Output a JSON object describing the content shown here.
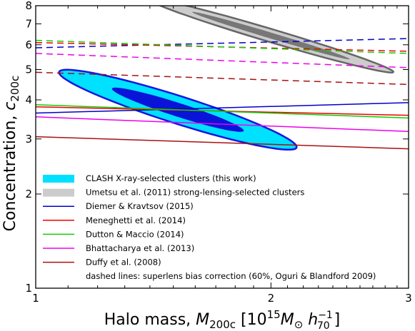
{
  "chart_data": {
    "type": "line",
    "x_scale": "log",
    "y_scale": "log",
    "xlim": [
      1,
      3
    ],
    "ylim": [
      1,
      8
    ],
    "x_ticks": [
      {
        "value": 1,
        "label": "1"
      },
      {
        "value": 2,
        "label": "2"
      },
      {
        "value": 3,
        "label": "3"
      }
    ],
    "y_ticks": [
      {
        "value": 1,
        "label": "1"
      },
      {
        "value": 2,
        "label": "2"
      },
      {
        "value": 3,
        "label": "3"
      },
      {
        "value": 4,
        "label": "4"
      },
      {
        "value": 5,
        "label": "5"
      },
      {
        "value": 6,
        "label": "6"
      },
      {
        "value": 7,
        "label": "7"
      },
      {
        "value": 8,
        "label": "8"
      }
    ],
    "xlabel": {
      "prefix": "Halo mass, ",
      "sym": "M",
      "sub": "200c",
      "units": " [10",
      "exp": "15",
      "msun": "M",
      "msun_sub": "⊙",
      "h": " h",
      "h_sub": "70",
      "h_exp": "−1",
      "close": "]"
    },
    "ylabel": {
      "prefix": "Concentration, ",
      "sym": "c",
      "sub": "200c"
    },
    "ellipses": [
      {
        "name": "CLASH X-ray-selected clusters (this work)",
        "center": [
          1.52,
          3.72
        ],
        "inner": {
          "semi_major_logx": 0.25,
          "semi_minor": 0.041,
          "fill": "#0a14d8"
        },
        "outer": {
          "semi_major_logx": 0.45,
          "semi_minor": 0.083,
          "fill": "#00e0ff",
          "stroke": "#1515e0"
        },
        "slope": -0.83
      },
      {
        "name": "Umetsu et al. (2011) strong-lensing-selected clusters",
        "center": [
          2.0,
          6.42
        ],
        "inner": {
          "semi_major_logx": 0.29,
          "semi_minor": 0.018,
          "fill": "#777777"
        },
        "outer": {
          "semi_major_logx": 0.45,
          "semi_minor": 0.04,
          "fill": "#cccccc",
          "stroke": "#666666"
        },
        "slope": -0.75
      }
    ],
    "series": [
      {
        "name": "Diemer & Kravtsov (2015)",
        "color": "#0000cc",
        "x": [
          1,
          3
        ],
        "solid": [
          3.63,
          3.92
        ],
        "dashed": [
          5.87,
          6.28
        ]
      },
      {
        "name": "Meneghetti et al. (2014)",
        "color": "#ee0000",
        "x": [
          1,
          3
        ],
        "solid": [
          3.8,
          3.57
        ],
        "dashed": [
          6.1,
          5.72
        ]
      },
      {
        "name": "Dutton & Maccio (2014)",
        "color": "#11cc00",
        "x": [
          1,
          3
        ],
        "solid": [
          3.86,
          3.5
        ],
        "dashed": [
          6.2,
          5.63
        ]
      },
      {
        "name": "Bhattacharya et al. (2013)",
        "color": "#ee00ee",
        "x": [
          1,
          3
        ],
        "solid": [
          3.53,
          3.17
        ],
        "dashed": [
          5.63,
          5.07
        ]
      },
      {
        "name": "Duffy et al. (2008)",
        "color": "#aa1111",
        "x": [
          1,
          3
        ],
        "solid": [
          3.05,
          2.79
        ],
        "dashed": [
          4.9,
          4.48
        ]
      }
    ],
    "legend_position": "lower-left",
    "legend_note": "dashed lines: superlens bias correction (60%, Oguri & Blandford 2009)",
    "legend_swatches": {
      "clash": "#00e0ff",
      "umetsu": "#cccccc"
    }
  }
}
